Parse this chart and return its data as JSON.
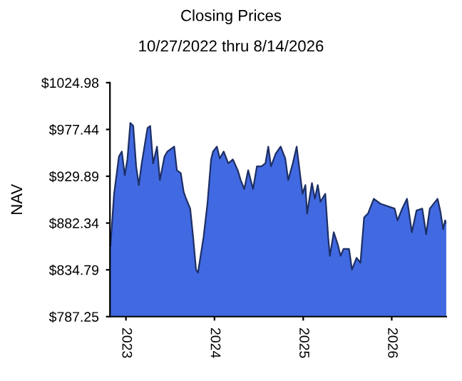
{
  "chart_data": {
    "type": "area",
    "title": "Closing Prices",
    "subtitle": "10/27/2022 thru 8/14/2026",
    "ylabel": "NAV",
    "x": [
      "2022-10-27",
      "2022-10-29",
      "2022-11-13",
      "2022-12-03",
      "2022-12-15",
      "2022-12-27",
      "2023-01-07",
      "2023-01-19",
      "2023-01-31",
      "2023-02-12",
      "2023-02-23",
      "2023-03-07",
      "2023-03-31",
      "2023-04-11",
      "2023-04-23",
      "2023-05-09",
      "2023-05-21",
      "2023-06-09",
      "2023-06-21",
      "2023-07-19",
      "2023-07-30",
      "2023-08-15",
      "2023-08-27",
      "2023-09-03",
      "2023-09-23",
      "2023-10-05",
      "2023-10-17",
      "2023-10-25",
      "2023-11-17",
      "2023-12-03",
      "2023-12-18",
      "2023-12-26",
      "2024-01-11",
      "2024-01-23",
      "2024-02-08",
      "2024-02-27",
      "2024-03-17",
      "2024-04-06",
      "2024-04-18",
      "2024-05-03",
      "2024-05-19",
      "2024-06-08",
      "2024-06-24",
      "2024-07-13",
      "2024-07-29",
      "2024-08-10",
      "2024-08-21",
      "2024-09-10",
      "2024-09-30",
      "2024-10-19",
      "2024-10-31",
      "2024-11-19",
      "2024-12-05",
      "2024-12-17",
      "2024-12-29",
      "2025-01-10",
      "2025-01-17",
      "2025-02-06",
      "2025-02-18",
      "2025-03-02",
      "2025-03-13",
      "2025-04-02",
      "2025-04-14",
      "2025-04-21",
      "2025-05-07",
      "2025-05-23",
      "2025-06-04",
      "2025-06-16",
      "2025-07-09",
      "2025-07-21",
      "2025-08-09",
      "2025-08-25",
      "2025-09-09",
      "2025-09-25",
      "2025-10-19",
      "2025-11-15",
      "2026-01-13",
      "2026-01-25",
      "2026-02-13",
      "2026-03-05",
      "2026-03-25",
      "2026-04-13",
      "2026-05-07",
      "2026-05-23",
      "2026-06-07",
      "2026-07-09",
      "2026-07-20",
      "2026-08-01",
      "2026-08-09",
      "2026-08-14"
    ],
    "series": [
      {
        "color": "#4169e1",
        "values": [
          871,
          859,
          912,
          950,
          955,
          931,
          947,
          984,
          981,
          940,
          921,
          943,
          979,
          981,
          943,
          960,
          926,
          950,
          955,
          960,
          936,
          933,
          914,
          909,
          897,
          868,
          835,
          832,
          868,
          902,
          947,
          955,
          960,
          948,
          955,
          943,
          947,
          936,
          926,
          917,
          936,
          917,
          940,
          940,
          943,
          960,
          940,
          953,
          960,
          948,
          926,
          943,
          960,
          936,
          912,
          921,
          892,
          923,
          907,
          921,
          904,
          912,
          868,
          849,
          873,
          861,
          849,
          856,
          856,
          835,
          847,
          842,
          888,
          892,
          907,
          902,
          897,
          885,
          897,
          907,
          873,
          895,
          897,
          871,
          897,
          907,
          895,
          876,
          885,
          882
        ]
      }
    ],
    "xlim": [
      "2022-10-27",
      "2026-08-14"
    ],
    "xticks": [
      "2023",
      "2024",
      "2025",
      "2026"
    ],
    "ylim": [
      787.25,
      1024.98
    ],
    "yticks": [
      {
        "value": 787.25,
        "label": "$787.25"
      },
      {
        "value": 834.79,
        "label": "$834.79"
      },
      {
        "value": 882.34,
        "label": "$882.34"
      },
      {
        "value": 929.89,
        "label": "$929.89"
      },
      {
        "value": 977.44,
        "label": "$977.44"
      },
      {
        "value": 1024.98,
        "label": "$1024.98"
      }
    ],
    "grid": false
  }
}
